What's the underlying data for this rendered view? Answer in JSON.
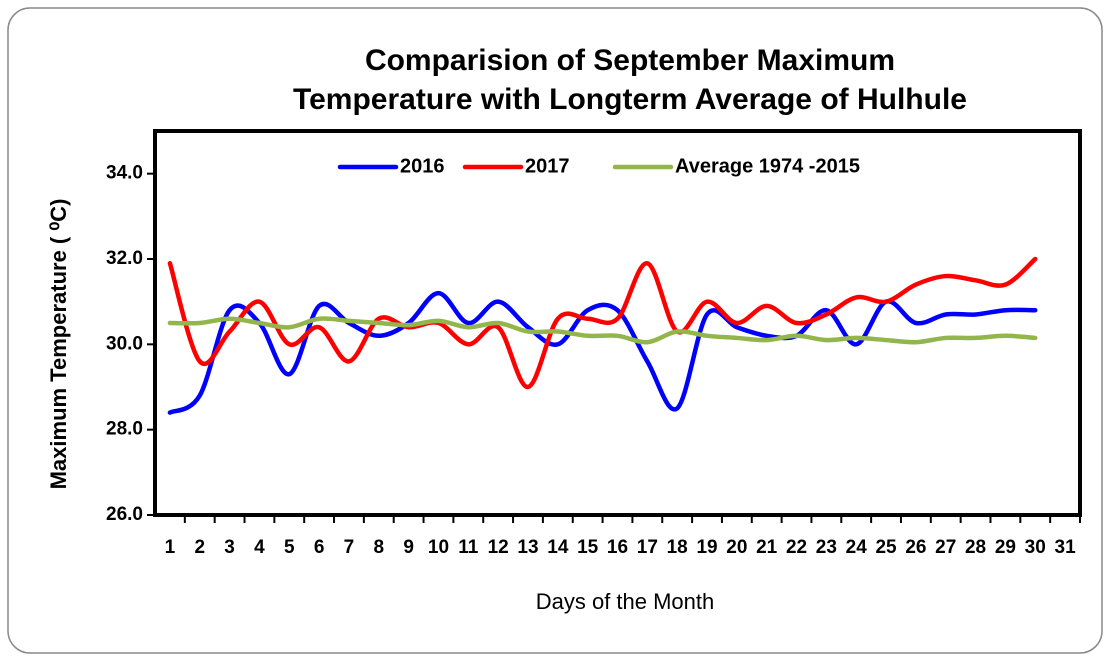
{
  "chart_data": {
    "type": "line",
    "title": [
      "Comparision of September Maximum",
      "Temperature with Longterm Average of Hulhule"
    ],
    "xlabel": "Days of the Month",
    "ylabel": "Maximum Temperature ( ⁰C)",
    "categories": [
      "1",
      "2",
      "3",
      "4",
      "5",
      "6",
      "7",
      "8",
      "9",
      "10",
      "11",
      "12",
      "13",
      "14",
      "15",
      "16",
      "17",
      "18",
      "19",
      "20",
      "21",
      "22",
      "23",
      "24",
      "25",
      "26",
      "27",
      "28",
      "29",
      "30",
      "31"
    ],
    "series": [
      {
        "name": "2016",
        "color": "#0000ff",
        "values": [
          28.4,
          28.8,
          30.8,
          30.5,
          29.3,
          30.9,
          30.5,
          30.2,
          30.5,
          31.2,
          30.5,
          31.0,
          30.4,
          30.0,
          30.8,
          30.8,
          29.6,
          28.5,
          30.7,
          30.4,
          30.2,
          30.2,
          30.8,
          30.0,
          31.0,
          30.5,
          30.7,
          30.7,
          30.8,
          30.8,
          null
        ]
      },
      {
        "name": "2017",
        "color": "#ff0000",
        "values": [
          31.9,
          29.6,
          30.3,
          31.0,
          30.0,
          30.4,
          29.6,
          30.6,
          30.4,
          30.5,
          30.0,
          30.4,
          29.0,
          30.6,
          30.6,
          30.6,
          31.9,
          30.3,
          31.0,
          30.5,
          30.9,
          30.5,
          30.7,
          31.1,
          31.0,
          31.4,
          31.6,
          31.5,
          31.4,
          32.0,
          null
        ]
      },
      {
        "name": "Average 1974 -2015",
        "color": "#92b64c",
        "values": [
          30.5,
          30.5,
          30.6,
          30.5,
          30.4,
          30.6,
          30.55,
          30.5,
          30.45,
          30.55,
          30.4,
          30.5,
          30.3,
          30.3,
          30.2,
          30.2,
          30.05,
          30.3,
          30.2,
          30.15,
          30.1,
          30.2,
          30.1,
          30.15,
          30.1,
          30.05,
          30.15,
          30.15,
          30.2,
          30.15,
          null
        ]
      }
    ],
    "ylim": [
      26,
      35
    ],
    "yticks": [
      {
        "value": 26,
        "label": "26.0"
      },
      {
        "value": 28,
        "label": "28.0"
      },
      {
        "value": 30,
        "label": "30.0"
      },
      {
        "value": 32,
        "label": "32.0"
      },
      {
        "value": 34,
        "label": "34.0"
      }
    ],
    "legend": "top"
  }
}
